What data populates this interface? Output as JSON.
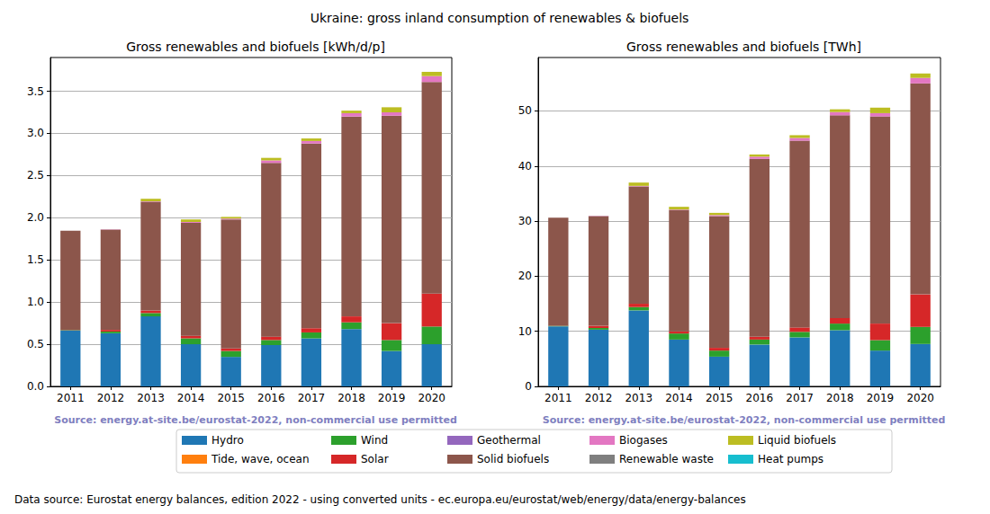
{
  "title": "Ukraine: gross inland consumption of renewables & biofuels",
  "footer": "Data source: Eurostat energy balances, edition 2022 - using converted units - ec.europa.eu/eurostat/web/energy/data/energy-balances",
  "chart_data": [
    {
      "type": "bar",
      "title": "Gross renewables and biofuels [kWh/d/p]",
      "source": "Source: energy.at-site.be/eurostat-2022, non-commercial use permitted",
      "stacked": true,
      "grid": true,
      "legend": "bottom",
      "categories": [
        "2011",
        "2012",
        "2013",
        "2014",
        "2015",
        "2016",
        "2017",
        "2018",
        "2019",
        "2020"
      ],
      "ylim": [
        0,
        3.9
      ],
      "yticks": [
        {
          "value": 0,
          "label": "0.0"
        },
        {
          "value": 0.5,
          "label": "0.5"
        },
        {
          "value": 1,
          "label": "1.0"
        },
        {
          "value": 1.5,
          "label": "1.5"
        },
        {
          "value": 2,
          "label": "2.0"
        },
        {
          "value": 2.5,
          "label": "2.5"
        },
        {
          "value": 3,
          "label": "3.0"
        },
        {
          "value": 3.5,
          "label": "3.5"
        }
      ],
      "series": [
        {
          "name": "Hydro",
          "color": "#1f77b4",
          "values": [
            0.66,
            0.63,
            0.83,
            0.5,
            0.35,
            0.49,
            0.57,
            0.68,
            0.42,
            0.5
          ]
        },
        {
          "name": "Tide, wave, ocean",
          "color": "#ff7f0e",
          "values": [
            0,
            0,
            0,
            0,
            0,
            0,
            0,
            0,
            0,
            0
          ]
        },
        {
          "name": "Wind",
          "color": "#2ca02c",
          "values": [
            0.005,
            0.02,
            0.04,
            0.07,
            0.07,
            0.06,
            0.07,
            0.08,
            0.13,
            0.21
          ]
        },
        {
          "name": "Solar",
          "color": "#d62728",
          "values": [
            0,
            0.02,
            0.03,
            0.03,
            0.03,
            0.04,
            0.05,
            0.07,
            0.2,
            0.39
          ]
        },
        {
          "name": "Geothermal",
          "color": "#9467bd",
          "values": [
            0,
            0,
            0,
            0,
            0,
            0,
            0,
            0,
            0,
            0
          ]
        },
        {
          "name": "Solid biofuels",
          "color": "#8c564b",
          "values": [
            1.18,
            1.19,
            1.29,
            1.34,
            1.53,
            2.06,
            2.19,
            2.37,
            2.46,
            2.51
          ]
        },
        {
          "name": "Biogases",
          "color": "#e377c2",
          "values": [
            0,
            0.003,
            0.005,
            0.01,
            0.01,
            0.03,
            0.03,
            0.04,
            0.04,
            0.07
          ]
        },
        {
          "name": "Renewable waste",
          "color": "#7f7f7f",
          "values": [
            0,
            0,
            0,
            0,
            0,
            0,
            0,
            0,
            0,
            0
          ]
        },
        {
          "name": "Liquid biofuels",
          "color": "#bcbd22",
          "values": [
            0,
            0,
            0.03,
            0.03,
            0.02,
            0.03,
            0.03,
            0.03,
            0.06,
            0.05
          ]
        },
        {
          "name": "Heat pumps",
          "color": "#17becf",
          "values": [
            0,
            0,
            0,
            0,
            0,
            0,
            0,
            0,
            0,
            0
          ]
        }
      ]
    },
    {
      "type": "bar",
      "title": "Gross renewables and biofuels [TWh]",
      "source": "Source: energy.at-site.be/eurostat-2022, non-commercial use permitted",
      "stacked": true,
      "grid": true,
      "categories": [
        "2011",
        "2012",
        "2013",
        "2014",
        "2015",
        "2016",
        "2017",
        "2018",
        "2019",
        "2020"
      ],
      "ylim": [
        0,
        59.7
      ],
      "yticks": [
        0,
        10,
        20,
        30,
        40,
        50
      ],
      "series": [
        {
          "name": "Hydro",
          "color": "#1f77b4",
          "values": [
            10.9,
            10.3,
            13.8,
            8.5,
            5.4,
            7.6,
            8.9,
            10.2,
            6.5,
            7.7
          ]
        },
        {
          "name": "Tide, wave, ocean",
          "color": "#ff7f0e",
          "values": [
            0,
            0,
            0,
            0,
            0,
            0,
            0,
            0,
            0,
            0
          ]
        },
        {
          "name": "Wind",
          "color": "#2ca02c",
          "values": [
            0.1,
            0.3,
            0.6,
            1.1,
            1.1,
            0.9,
            1.0,
            1.2,
            1.9,
            3.1
          ]
        },
        {
          "name": "Solar",
          "color": "#d62728",
          "values": [
            0.03,
            0.4,
            0.6,
            0.4,
            0.5,
            0.5,
            0.8,
            1.0,
            3.0,
            5.9
          ]
        },
        {
          "name": "Geothermal",
          "color": "#9467bd",
          "values": [
            0,
            0,
            0,
            0,
            0,
            0,
            0,
            0,
            0,
            0
          ]
        },
        {
          "name": "Solid biofuels",
          "color": "#8c564b",
          "values": [
            19.6,
            19.9,
            21.3,
            22.0,
            23.9,
            32.3,
            33.9,
            36.8,
            37.6,
            38.3
          ]
        },
        {
          "name": "Biogases",
          "color": "#e377c2",
          "values": [
            0,
            0.05,
            0.1,
            0.1,
            0.2,
            0.4,
            0.5,
            0.6,
            0.6,
            1.0
          ]
        },
        {
          "name": "Renewable waste",
          "color": "#7f7f7f",
          "values": [
            0,
            0,
            0,
            0,
            0,
            0,
            0,
            0,
            0,
            0
          ]
        },
        {
          "name": "Liquid biofuels",
          "color": "#bcbd22",
          "values": [
            0,
            0,
            0.6,
            0.5,
            0.4,
            0.4,
            0.5,
            0.5,
            1.0,
            0.8
          ]
        },
        {
          "name": "Heat pumps",
          "color": "#17becf",
          "values": [
            0,
            0,
            0,
            0,
            0,
            0,
            0,
            0,
            0,
            0
          ]
        }
      ]
    }
  ]
}
